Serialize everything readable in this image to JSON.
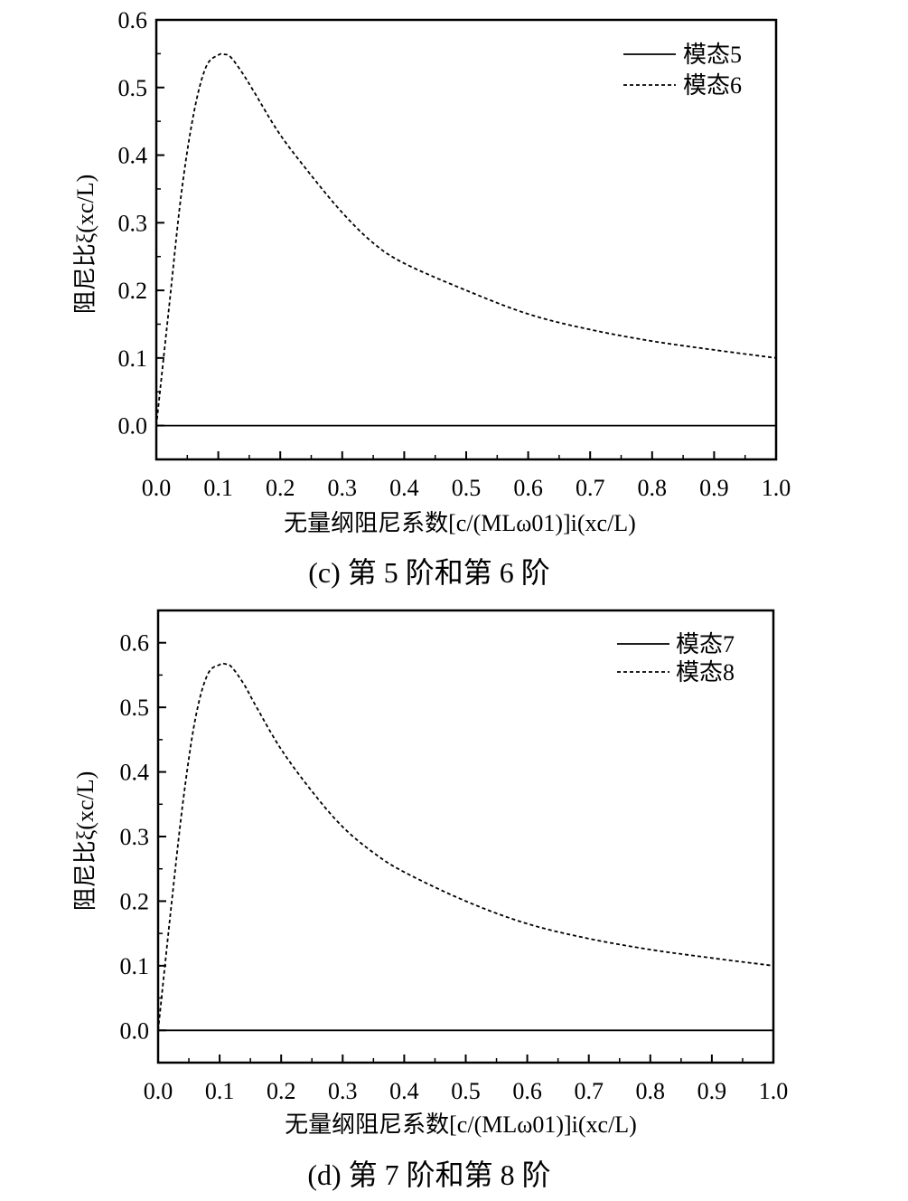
{
  "chart_data": [
    {
      "type": "line",
      "caption": "(c)  第 5 阶和第 6 阶",
      "xlabel": "无量纲阻尼系数[c/(MLω01)]i(xc/L)",
      "ylabel": "阻尼比ξ(xc/L)",
      "xlim": [
        0.0,
        1.0
      ],
      "ylim": [
        -0.05,
        0.6
      ],
      "xticks": [
        "0.0",
        "0.1",
        "0.2",
        "0.3",
        "0.4",
        "0.5",
        "0.6",
        "0.7",
        "0.8",
        "0.9",
        "1.0"
      ],
      "yticks": [
        "0.0",
        "0.1",
        "0.2",
        "0.3",
        "0.4",
        "0.5",
        "0.6"
      ],
      "legend_position": "top-right",
      "series": [
        {
          "name": "模态5",
          "style": "solid",
          "x": [
            0.0,
            0.1,
            0.2,
            0.3,
            0.4,
            0.5,
            0.6,
            0.7,
            0.8,
            0.9,
            1.0
          ],
          "y": [
            0.0,
            0.0,
            0.0,
            0.0,
            0.0,
            0.0,
            0.0,
            0.0,
            0.0,
            0.0,
            0.0
          ]
        },
        {
          "name": "模态6",
          "style": "dashed",
          "x": [
            0.0,
            0.02,
            0.04,
            0.06,
            0.08,
            0.1,
            0.11,
            0.12,
            0.14,
            0.16,
            0.2,
            0.25,
            0.3,
            0.35,
            0.4,
            0.5,
            0.6,
            0.7,
            0.8,
            0.9,
            1.0
          ],
          "y": [
            0.0,
            0.17,
            0.34,
            0.46,
            0.53,
            0.548,
            0.549,
            0.545,
            0.52,
            0.49,
            0.43,
            0.37,
            0.315,
            0.27,
            0.24,
            0.2,
            0.165,
            0.142,
            0.125,
            0.112,
            0.1
          ]
        }
      ]
    },
    {
      "type": "line",
      "caption": "(d)  第 7 阶和第 8 阶",
      "xlabel": "无量纲阻尼系数[c/(MLω01)]i(xc/L)",
      "ylabel": "阻尼比ξ(xc/L)",
      "xlim": [
        0.0,
        1.0
      ],
      "ylim": [
        -0.05,
        0.65
      ],
      "xticks": [
        "0.0",
        "0.1",
        "0.2",
        "0.3",
        "0.4",
        "0.5",
        "0.6",
        "0.7",
        "0.8",
        "0.9",
        "1.0"
      ],
      "yticks": [
        "0.0",
        "0.1",
        "0.2",
        "0.3",
        "0.4",
        "0.5",
        "0.6"
      ],
      "legend_position": "top-right",
      "series": [
        {
          "name": "模态7",
          "style": "solid",
          "x": [
            0.0,
            0.1,
            0.2,
            0.3,
            0.4,
            0.5,
            0.6,
            0.7,
            0.8,
            0.9,
            1.0
          ],
          "y": [
            0.0,
            0.0,
            0.0,
            0.0,
            0.0,
            0.0,
            0.0,
            0.0,
            0.0,
            0.0,
            0.0
          ]
        },
        {
          "name": "模态8",
          "style": "dashed",
          "x": [
            0.0,
            0.02,
            0.04,
            0.06,
            0.08,
            0.1,
            0.11,
            0.12,
            0.14,
            0.16,
            0.2,
            0.25,
            0.3,
            0.35,
            0.4,
            0.5,
            0.6,
            0.7,
            0.8,
            0.9,
            1.0
          ],
          "y": [
            0.0,
            0.18,
            0.35,
            0.48,
            0.55,
            0.566,
            0.567,
            0.562,
            0.535,
            0.5,
            0.435,
            0.37,
            0.315,
            0.275,
            0.245,
            0.2,
            0.165,
            0.142,
            0.125,
            0.112,
            0.1
          ]
        }
      ]
    }
  ]
}
